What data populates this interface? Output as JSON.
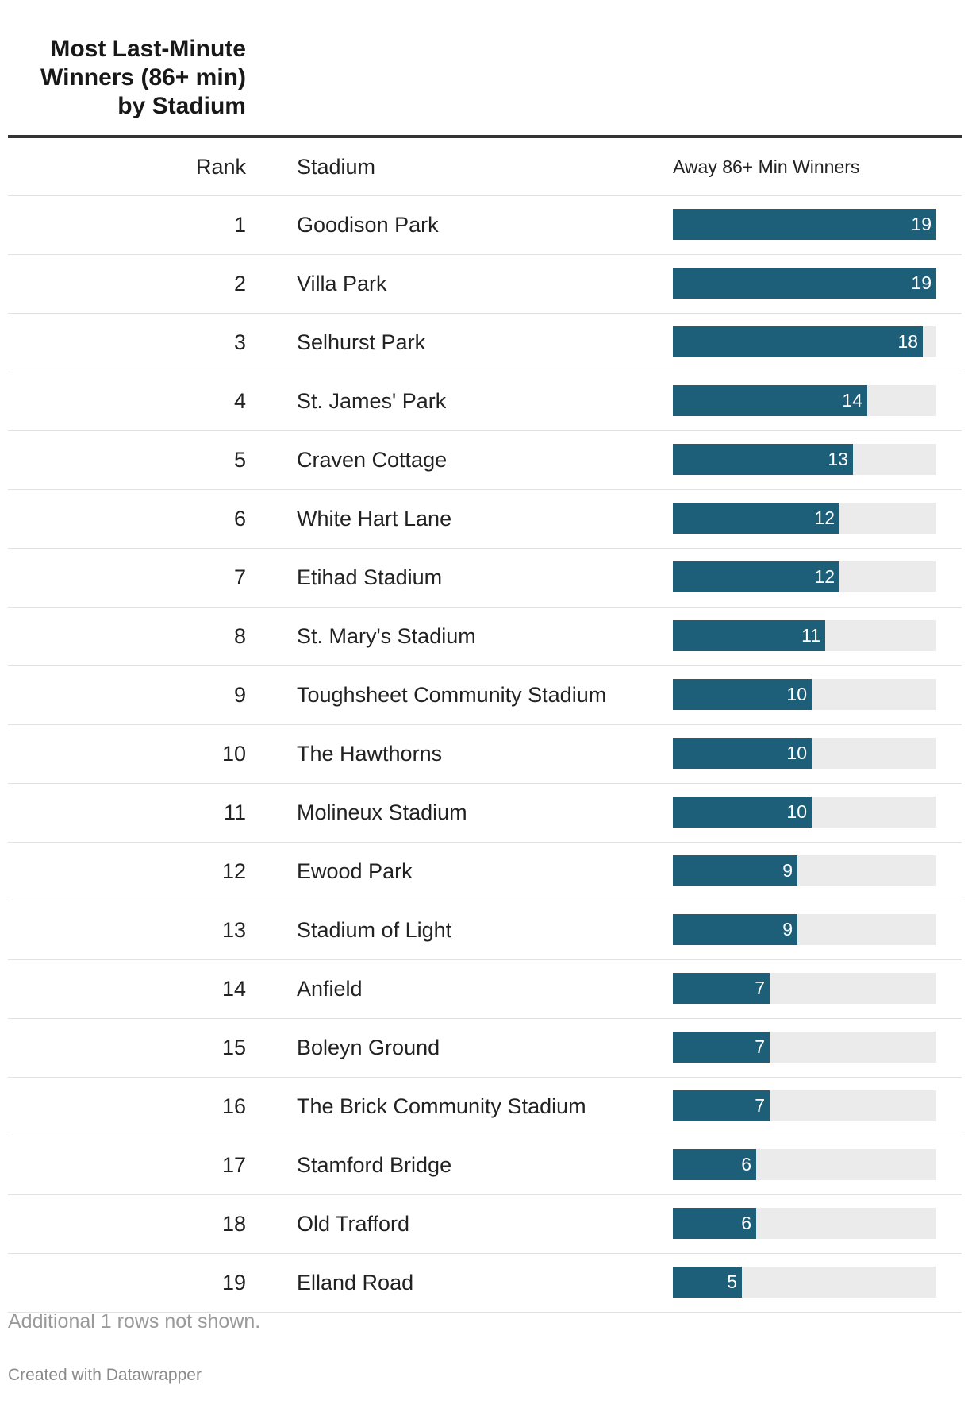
{
  "title": "Most Last-Minute Winners (86+ min) by Stadium",
  "columns": {
    "rank": "Rank",
    "stadium": "Stadium",
    "away": "Away 86+ Min Winners"
  },
  "colors": {
    "bar": "#1d5f79",
    "track": "#ebebeb",
    "rule": "#333333"
  },
  "chart_data": {
    "type": "table",
    "title": "Most Last-Minute Winners (86+ min) by Stadium",
    "columns": [
      "Rank",
      "Stadium",
      "Away 86+ Min Winners"
    ],
    "bar_column": "Away 86+ Min Winners",
    "bar_max": 19,
    "rows": [
      {
        "rank": "1",
        "stadium": "Goodison Park",
        "value": 19
      },
      {
        "rank": "2",
        "stadium": "Villa Park",
        "value": 19
      },
      {
        "rank": "3",
        "stadium": "Selhurst Park",
        "value": 18
      },
      {
        "rank": "4",
        "stadium": "St. James' Park",
        "value": 14
      },
      {
        "rank": "5",
        "stadium": "Craven Cottage",
        "value": 13
      },
      {
        "rank": "6",
        "stadium": "White Hart Lane",
        "value": 12
      },
      {
        "rank": "7",
        "stadium": "Etihad Stadium",
        "value": 12
      },
      {
        "rank": "8",
        "stadium": "St. Mary's Stadium",
        "value": 11
      },
      {
        "rank": "9",
        "stadium": "Toughsheet Community Stadium",
        "value": 10
      },
      {
        "rank": "10",
        "stadium": "The Hawthorns",
        "value": 10
      },
      {
        "rank": "11",
        "stadium": "Molineux Stadium",
        "value": 10
      },
      {
        "rank": "12",
        "stadium": "Ewood Park",
        "value": 9
      },
      {
        "rank": "13",
        "stadium": "Stadium of Light",
        "value": 9
      },
      {
        "rank": "14",
        "stadium": "Anfield",
        "value": 7
      },
      {
        "rank": "15",
        "stadium": "Boleyn Ground",
        "value": 7
      },
      {
        "rank": "16",
        "stadium": "The Brick Community Stadium",
        "value": 7
      },
      {
        "rank": "17",
        "stadium": "Stamford Bridge",
        "value": 6
      },
      {
        "rank": "18",
        "stadium": "Old Trafford",
        "value": 6
      },
      {
        "rank": "19",
        "stadium": "Elland Road",
        "value": 5
      }
    ]
  },
  "footnote": "Additional 1 rows not shown.",
  "credit": "Created with Datawrapper"
}
